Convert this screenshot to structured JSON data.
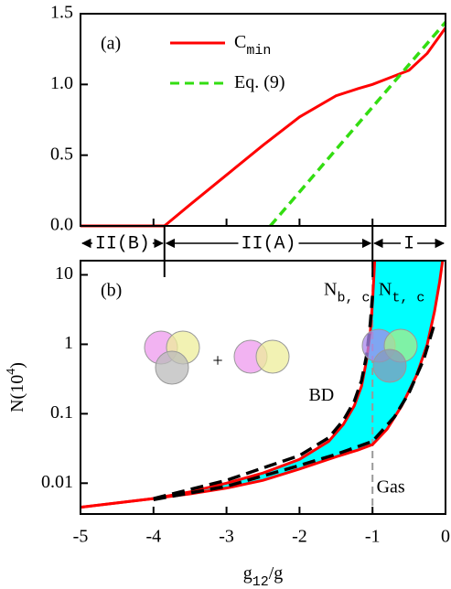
{
  "chart_data": [
    {
      "type": "line",
      "panel_label": "(a)",
      "xlim": [
        -5,
        0
      ],
      "xticks": [
        -5,
        -4,
        -3,
        -2,
        -1,
        0
      ],
      "ylim": [
        0,
        1.5
      ],
      "yticks": [
        {
          "value": 0,
          "label": "0.0"
        },
        {
          "value": 0.5,
          "label": "0.5"
        },
        {
          "value": 1,
          "label": "1.0"
        },
        {
          "value": 1.5,
          "label": "1.5"
        }
      ],
      "series": [
        {
          "name": "C",
          "name_sub": "min",
          "color": "#ff0000",
          "dash": false,
          "x": [
            -5,
            -3.85,
            -3.5,
            -3,
            -2.5,
            -2,
            -1.5,
            -1.2,
            -1,
            -0.8,
            -0.5,
            -0.25,
            0
          ],
          "values": [
            0,
            0,
            0.15,
            0.36,
            0.57,
            0.77,
            0.92,
            0.97,
            1.0,
            1.04,
            1.1,
            1.22,
            1.4
          ]
        },
        {
          "name": "Eq. (9)",
          "color": "#33dd11",
          "dash": true,
          "x": [
            -2.4,
            0
          ],
          "values": [
            0,
            1.44
          ]
        }
      ]
    },
    {
      "type": "line",
      "panel_label": "(b)",
      "log_y": true,
      "xlim": [
        -5,
        0
      ],
      "xticks": [
        -5,
        -4,
        -3,
        -2,
        -1,
        0
      ],
      "xlabel": "g",
      "xlabel_sub": "12",
      "xlabel_tail": "/g",
      "ylabel": "N(10",
      "ylabel_sup": "4",
      "ylabel_tail": ")",
      "ylim": [
        0.0036,
        16
      ],
      "yticks": [
        0.01,
        0.1,
        1,
        10
      ],
      "fill_color": "#00ffff",
      "regions": [
        {
          "label": "II(B)",
          "from": -5,
          "to": -3.85
        },
        {
          "label": "II(A)",
          "from": -3.85,
          "to": -1
        },
        {
          "label": "I",
          "from": -1,
          "to": 0
        }
      ],
      "series": [
        {
          "color": "#ff0000",
          "dash": false,
          "x": [
            -5,
            -4.5,
            -4,
            -3.5,
            -3,
            -2.5,
            -2,
            -1.6,
            -1.4,
            -1.25,
            -1.15,
            -1.08,
            -1.03,
            -1.0,
            -0.97
          ],
          "values": [
            0.0045,
            0.0052,
            0.006,
            0.0075,
            0.01,
            0.014,
            0.022,
            0.04,
            0.07,
            0.13,
            0.25,
            0.6,
            1.5,
            4,
            16
          ]
        },
        {
          "color": "#ff0000",
          "dash": false,
          "x": [
            -5,
            -4.5,
            -4,
            -3.5,
            -3,
            -2.5,
            -2,
            -1.5,
            -1.2,
            -1,
            -0.8,
            -0.6,
            -0.4,
            -0.25,
            -0.15,
            -0.08,
            -0.04
          ],
          "values": [
            0.0045,
            0.0052,
            0.006,
            0.007,
            0.0085,
            0.011,
            0.016,
            0.024,
            0.03,
            0.036,
            0.06,
            0.13,
            0.35,
            1,
            3,
            8,
            16
          ]
        },
        {
          "color": "#000000",
          "dash": true,
          "x": [
            -4,
            -3,
            -2,
            -1.6,
            -1.4,
            -1.25,
            -1.15,
            -1.08,
            -1.03,
            -1.0
          ],
          "values": [
            0.006,
            0.011,
            0.025,
            0.045,
            0.08,
            0.15,
            0.3,
            0.7,
            2,
            5
          ]
        },
        {
          "color": "#000000",
          "dash": true,
          "x": [
            -4,
            -3,
            -2,
            -1.5,
            -1,
            -0.7,
            -0.5,
            -0.3,
            -0.15
          ],
          "values": [
            0.0058,
            0.009,
            0.018,
            0.026,
            0.04,
            0.09,
            0.2,
            0.6,
            2
          ]
        }
      ],
      "annotations": [
        {
          "text": "N",
          "sub": "b, c",
          "x": -1.35,
          "y": 6
        },
        {
          "text": "N",
          "sub": "t, c",
          "x": -0.6,
          "y": 6
        },
        {
          "text": "BD",
          "x": -1.7,
          "y": 0.18
        },
        {
          "text": "Gas",
          "x": -0.75,
          "y": 0.0085
        }
      ]
    }
  ]
}
